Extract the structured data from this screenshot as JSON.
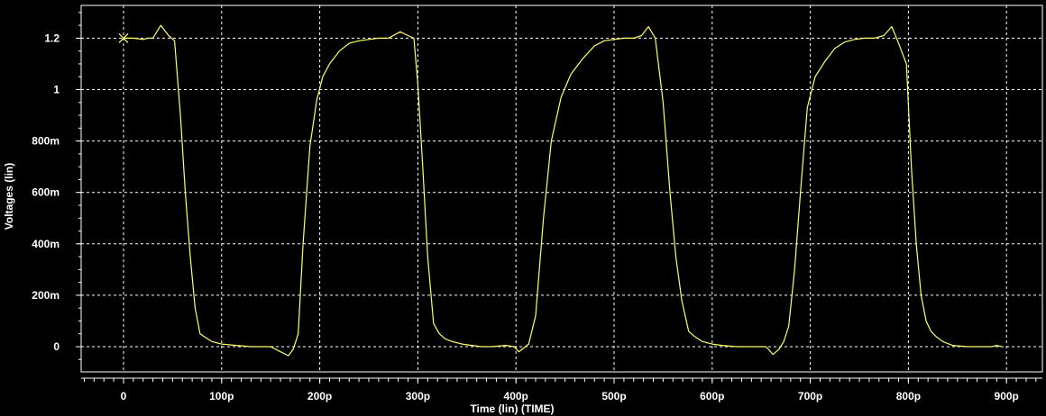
{
  "colors": {
    "background": "#000000",
    "frame": "#ffffff",
    "grid": "#ffffff",
    "trace": "#ffff66",
    "text": "#ffffff"
  },
  "chart_data": {
    "type": "line",
    "title": "",
    "xlabel": "Time (lin) (TIME)",
    "ylabel": "Voltages (lin)",
    "xlim": [
      -45,
      950
    ],
    "ylim": [
      -0.1,
      1.32
    ],
    "grid": true,
    "legend": "none",
    "x_ticks": [
      {
        "value": 0,
        "label": "0"
      },
      {
        "value": 100,
        "label": "100p"
      },
      {
        "value": 200,
        "label": "200p"
      },
      {
        "value": 300,
        "label": "300p"
      },
      {
        "value": 400,
        "label": "400p"
      },
      {
        "value": 500,
        "label": "500p"
      },
      {
        "value": 600,
        "label": "600p"
      },
      {
        "value": 700,
        "label": "700p"
      },
      {
        "value": 800,
        "label": "800p"
      },
      {
        "value": 900,
        "label": "900p"
      }
    ],
    "y_ticks": [
      {
        "value": 0,
        "label": "0"
      },
      {
        "value": 0.2,
        "label": "200m"
      },
      {
        "value": 0.4,
        "label": "400m"
      },
      {
        "value": 0.6,
        "label": "600m"
      },
      {
        "value": 0.8,
        "label": "800m"
      },
      {
        "value": 1.0,
        "label": "1"
      },
      {
        "value": 1.2,
        "label": "1.2"
      }
    ],
    "series": [
      {
        "marker_point": [
          0,
          1.2
        ],
        "x": [
          0,
          10,
          20,
          25,
          30,
          38,
          46,
          52,
          58,
          63,
          68,
          73,
          78,
          82,
          90,
          100,
          115,
          130,
          150,
          160,
          168,
          173,
          178,
          183,
          190,
          197,
          203,
          210,
          220,
          230,
          240,
          250,
          260,
          270,
          282,
          290,
          296,
          300,
          305,
          310,
          316,
          322,
          328,
          335,
          345,
          355,
          365,
          375,
          390,
          398,
          403,
          408,
          413,
          420,
          428,
          436,
          446,
          456,
          468,
          480,
          490,
          500,
          510,
          520,
          528,
          535,
          542,
          550,
          557,
          563,
          569,
          576,
          582,
          590,
          600,
          610,
          625,
          640,
          655,
          662,
          668,
          673,
          678,
          684,
          690,
          697,
          705,
          715,
          725,
          735,
          745,
          755,
          765,
          775,
          783,
          788,
          793,
          798,
          803,
          808,
          813,
          818,
          823,
          828,
          835,
          845,
          860,
          875,
          885,
          890,
          895
        ],
        "y": [
          1.2,
          1.2,
          1.195,
          1.2,
          1.2,
          1.25,
          1.21,
          1.19,
          0.9,
          0.6,
          0.35,
          0.15,
          0.05,
          0.04,
          0.02,
          0.01,
          0.005,
          0.0,
          0.0,
          -0.02,
          -0.035,
          -0.01,
          0.05,
          0.4,
          0.78,
          0.96,
          1.05,
          1.1,
          1.15,
          1.18,
          1.19,
          1.195,
          1.2,
          1.2,
          1.225,
          1.21,
          1.2,
          1.02,
          0.7,
          0.35,
          0.09,
          0.05,
          0.03,
          0.02,
          0.01,
          0.005,
          0.0,
          0.0,
          0.005,
          0.0,
          -0.02,
          -0.005,
          0.01,
          0.12,
          0.5,
          0.8,
          0.97,
          1.06,
          1.12,
          1.17,
          1.19,
          1.195,
          1.2,
          1.2,
          1.21,
          1.245,
          1.2,
          0.95,
          0.6,
          0.35,
          0.18,
          0.06,
          0.04,
          0.02,
          0.01,
          0.005,
          0.0,
          0.0,
          0.0,
          -0.03,
          -0.01,
          0.02,
          0.08,
          0.3,
          0.6,
          0.93,
          1.05,
          1.11,
          1.16,
          1.185,
          1.195,
          1.2,
          1.2,
          1.21,
          1.245,
          1.2,
          1.15,
          1.1,
          0.7,
          0.4,
          0.2,
          0.1,
          0.06,
          0.04,
          0.02,
          0.005,
          0.0,
          0.0,
          0.0,
          0.005,
          0.0
        ]
      }
    ]
  }
}
